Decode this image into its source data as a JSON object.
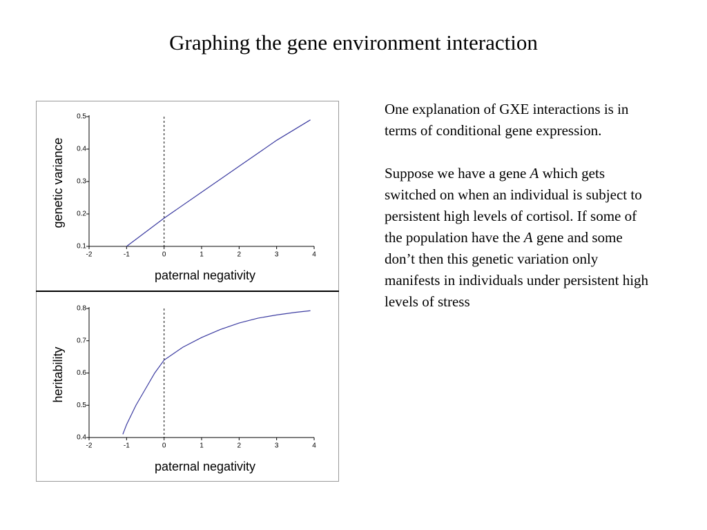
{
  "title": "Graphing the gene environment interaction",
  "chart_data": [
    {
      "type": "line",
      "xlabel": "paternal negativity",
      "ylabel": "genetic variance",
      "xlim": [
        -2,
        4
      ],
      "ylim": [
        0.1,
        0.5
      ],
      "xticks": [
        -2,
        -1,
        0,
        1,
        2,
        3,
        4
      ],
      "yticks": [
        0.1,
        0.2,
        0.3,
        0.4,
        0.5
      ],
      "vline": 0,
      "series": [
        {
          "color": "#3a3aa0",
          "x": [
            -1,
            0,
            1,
            2,
            3,
            3.9
          ],
          "values": [
            0.1,
            0.187,
            0.267,
            0.347,
            0.427,
            0.49
          ]
        }
      ]
    },
    {
      "type": "line",
      "xlabel": "paternal negativity",
      "ylabel": "heritability",
      "xlim": [
        -2,
        4
      ],
      "ylim": [
        0.4,
        0.8
      ],
      "xticks": [
        -2,
        -1,
        0,
        1,
        2,
        3,
        4
      ],
      "yticks": [
        0.4,
        0.5,
        0.6,
        0.7,
        0.8
      ],
      "vline": 0,
      "series": [
        {
          "color": "#3a3aa0",
          "x": [
            -1.1,
            -1,
            -0.75,
            -0.5,
            -0.25,
            0,
            0.5,
            1,
            1.5,
            2,
            2.5,
            3,
            3.5,
            3.9
          ],
          "values": [
            0.41,
            0.44,
            0.5,
            0.55,
            0.6,
            0.64,
            0.68,
            0.71,
            0.735,
            0.755,
            0.77,
            0.78,
            0.788,
            0.793
          ]
        }
      ]
    }
  ],
  "paragraphs": [
    [
      "One explanation of GXE interactions is in terms of conditional gene expression."
    ],
    [
      "Suppose we have a gene ",
      {
        "em": "A"
      },
      " which gets switched on when an individual is subject to persistent high levels of cortisol. If some of the population have the ",
      {
        "em": "A"
      },
      " gene and some don’t then this genetic variation only manifests in individuals under persistent high levels of stress"
    ]
  ]
}
